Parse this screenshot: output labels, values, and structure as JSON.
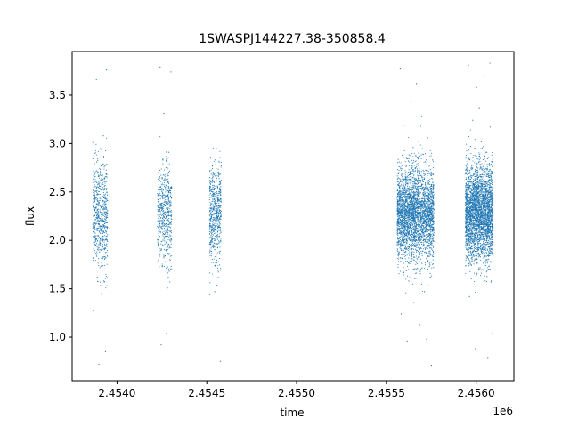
{
  "chart_data": {
    "type": "scatter",
    "title": "1SWASPJ144227.38-350858.4",
    "xlabel": "time",
    "ylabel": "flux",
    "x_offset_label": "1e6",
    "xlim": [
      2453750,
      2456210
    ],
    "ylim": [
      0.55,
      3.95
    ],
    "x_ticks": [
      2454000,
      2454500,
      2455000,
      2455500,
      2456000
    ],
    "x_tick_labels": [
      "2.4540",
      "2.4545",
      "2.4550",
      "2.4555",
      "2.4560"
    ],
    "y_ticks": [
      1.0,
      1.5,
      2.0,
      2.5,
      3.0,
      3.5
    ],
    "y_tick_labels": [
      "1.0",
      "1.5",
      "2.0",
      "2.5",
      "3.0",
      "3.5"
    ],
    "grid": false,
    "legend": "none",
    "marker_color": "#1f77b4",
    "series": [
      {
        "points": [
          [
            2453872,
            2.48
          ],
          [
            2453875,
            2.12
          ],
          [
            2453878,
            2.66
          ],
          [
            2453880,
            1.95
          ],
          [
            2453883,
            2.33
          ],
          [
            2453885,
            3.66
          ],
          [
            2453887,
            2.81
          ],
          [
            2453890,
            1.62
          ],
          [
            2453892,
            2.27
          ],
          [
            2453894,
            2.58
          ],
          [
            2453896,
            2.05
          ],
          [
            2453899,
            0.72
          ],
          [
            2453901,
            2.39
          ],
          [
            2453903,
            1.88
          ],
          [
            2453906,
            2.71
          ],
          [
            2453908,
            2.15
          ],
          [
            2453910,
            2.52
          ],
          [
            2453913,
            2.94
          ],
          [
            2453915,
            1.74
          ],
          [
            2453917,
            2.29
          ],
          [
            2453920,
            2.63
          ],
          [
            2453922,
            2.01
          ],
          [
            2453924,
            3.08
          ],
          [
            2453926,
            2.44
          ],
          [
            2453929,
            1.57
          ],
          [
            2453931,
            2.36
          ],
          [
            2453933,
            2.77
          ],
          [
            2453936,
            0.85
          ],
          [
            2453938,
            2.21
          ],
          [
            2453941,
            3.76
          ],
          [
            2454228,
            2.42
          ],
          [
            2454231,
            1.96
          ],
          [
            2454234,
            2.68
          ],
          [
            2454237,
            2.19
          ],
          [
            2454240,
            3.79
          ],
          [
            2454243,
            2.55
          ],
          [
            2454246,
            0.92
          ],
          [
            2454249,
            2.31
          ],
          [
            2454252,
            1.73
          ],
          [
            2454255,
            2.84
          ],
          [
            2454258,
            2.07
          ],
          [
            2454261,
            3.31
          ],
          [
            2454264,
            2.47
          ],
          [
            2454267,
            1.84
          ],
          [
            2454270,
            2.62
          ],
          [
            2454273,
            2.25
          ],
          [
            2454276,
            1.04
          ],
          [
            2454279,
            2.73
          ],
          [
            2454282,
            2.13
          ],
          [
            2454285,
            2.38
          ],
          [
            2454288,
            2.91
          ],
          [
            2454291,
            1.68
          ],
          [
            2454294,
            2.51
          ],
          [
            2454297,
            2.18
          ],
          [
            2454300,
            3.74
          ],
          [
            2454520,
            2.36
          ],
          [
            2454524,
            1.92
          ],
          [
            2454528,
            2.61
          ],
          [
            2454532,
            2.14
          ],
          [
            2454536,
            2.95
          ],
          [
            2454540,
            2.42
          ],
          [
            2454544,
            1.47
          ],
          [
            2454548,
            2.28
          ],
          [
            2454552,
            3.52
          ],
          [
            2454556,
            2.05
          ],
          [
            2454560,
            2.53
          ],
          [
            2454564,
            1.78
          ],
          [
            2454568,
            2.69
          ],
          [
            2454572,
            2.23
          ],
          [
            2454576,
            0.75
          ],
          [
            2455565,
            2.41
          ],
          [
            2455568,
            1.87
          ],
          [
            2455571,
            2.76
          ],
          [
            2455574,
            2.12
          ],
          [
            2455577,
            3.77
          ],
          [
            2455580,
            2.49
          ],
          [
            2455583,
            1.24
          ],
          [
            2455586,
            2.33
          ],
          [
            2455589,
            2.88
          ],
          [
            2455592,
            1.69
          ],
          [
            2455595,
            2.57
          ],
          [
            2455598,
            2.18
          ],
          [
            2455601,
            3.19
          ],
          [
            2455604,
            2.44
          ],
          [
            2455607,
            1.93
          ],
          [
            2455610,
            2.65
          ],
          [
            2455613,
            2.06
          ],
          [
            2455616,
            0.96
          ],
          [
            2455619,
            2.37
          ],
          [
            2455622,
            2.82
          ],
          [
            2455625,
            1.58
          ],
          [
            2455628,
            2.29
          ],
          [
            2455631,
            2.71
          ],
          [
            2455634,
            2.15
          ],
          [
            2455637,
            3.43
          ],
          [
            2455640,
            2.52
          ],
          [
            2455643,
            1.81
          ],
          [
            2455646,
            2.39
          ],
          [
            2455649,
            2.96
          ],
          [
            2455652,
            1.36
          ],
          [
            2455655,
            2.47
          ],
          [
            2455658,
            2.08
          ],
          [
            2455661,
            2.74
          ],
          [
            2455664,
            2.26
          ],
          [
            2455667,
            3.62
          ],
          [
            2455670,
            2.58
          ],
          [
            2455673,
            1.71
          ],
          [
            2455676,
            2.31
          ],
          [
            2455679,
            2.85
          ],
          [
            2455682,
            2.02
          ],
          [
            2455685,
            1.13
          ],
          [
            2455688,
            2.45
          ],
          [
            2455691,
            2.67
          ],
          [
            2455694,
            2.19
          ],
          [
            2455697,
            3.28
          ],
          [
            2455700,
            2.36
          ],
          [
            2455703,
            1.89
          ],
          [
            2455706,
            2.61
          ],
          [
            2455709,
            2.11
          ],
          [
            2455712,
            1.47
          ],
          [
            2455715,
            2.54
          ],
          [
            2455718,
            2.78
          ],
          [
            2455721,
            2.24
          ],
          [
            2455724,
            0.98
          ],
          [
            2455727,
            2.42
          ],
          [
            2455730,
            3.06
          ],
          [
            2455733,
            1.95
          ],
          [
            2455736,
            2.33
          ],
          [
            2455739,
            2.69
          ],
          [
            2455742,
            2.16
          ],
          [
            2455745,
            1.62
          ],
          [
            2455748,
            2.48
          ],
          [
            2455751,
            0.71
          ],
          [
            2455754,
            2.27
          ],
          [
            2455757,
            2.83
          ],
          [
            2455945,
            2.43
          ],
          [
            2455948,
            1.91
          ],
          [
            2455951,
            2.72
          ],
          [
            2455954,
            2.17
          ],
          [
            2455957,
            3.81
          ],
          [
            2455960,
            2.55
          ],
          [
            2455963,
            1.42
          ],
          [
            2455966,
            2.34
          ],
          [
            2455969,
            2.97
          ],
          [
            2455972,
            1.78
          ],
          [
            2455975,
            2.61
          ],
          [
            2455978,
            2.09
          ],
          [
            2455981,
            3.24
          ],
          [
            2455984,
            2.46
          ],
          [
            2455987,
            1.99
          ],
          [
            2455990,
            2.68
          ],
          [
            2455993,
            2.21
          ],
          [
            2455996,
            0.88
          ],
          [
            2455999,
            2.39
          ],
          [
            2456002,
            3.58
          ],
          [
            2456005,
            1.66
          ],
          [
            2456008,
            2.52
          ],
          [
            2456011,
            2.84
          ],
          [
            2456014,
            2.13
          ],
          [
            2456017,
            3.37
          ],
          [
            2456020,
            2.47
          ],
          [
            2456023,
            1.83
          ],
          [
            2456026,
            2.36
          ],
          [
            2456029,
            3.02
          ],
          [
            2456032,
            1.28
          ],
          [
            2456035,
            2.58
          ],
          [
            2456038,
            2.04
          ],
          [
            2456041,
            2.76
          ],
          [
            2456044,
            2.28
          ],
          [
            2456047,
            3.69
          ],
          [
            2456050,
            2.44
          ],
          [
            2456053,
            1.74
          ],
          [
            2456056,
            2.31
          ],
          [
            2456059,
            2.91
          ],
          [
            2456062,
            1.96
          ],
          [
            2456065,
            0.79
          ],
          [
            2456068,
            2.51
          ],
          [
            2456071,
            2.65
          ],
          [
            2456074,
            2.19
          ],
          [
            2456077,
            3.83
          ],
          [
            2456080,
            2.37
          ],
          [
            2456083,
            1.57
          ],
          [
            2456086,
            2.62
          ],
          [
            2456089,
            2.12
          ],
          [
            2456092,
            1.04
          ]
        ],
        "clusters": [
          {
            "x_range": [
              2453865,
              2453948
            ],
            "mean": 2.25,
            "spread": 0.28,
            "count": 650
          },
          {
            "x_range": [
              2454225,
              2454305
            ],
            "mean": 2.25,
            "spread": 0.26,
            "count": 550
          },
          {
            "x_range": [
              2454515,
              2454580
            ],
            "mean": 2.27,
            "spread": 0.25,
            "count": 600
          },
          {
            "x_range": [
              2455560,
              2455765
            ],
            "mean": 2.27,
            "spread": 0.24,
            "count": 3200
          },
          {
            "x_range": [
              2455940,
              2456095
            ],
            "mean": 2.28,
            "spread": 0.24,
            "count": 3200
          }
        ]
      }
    ]
  }
}
